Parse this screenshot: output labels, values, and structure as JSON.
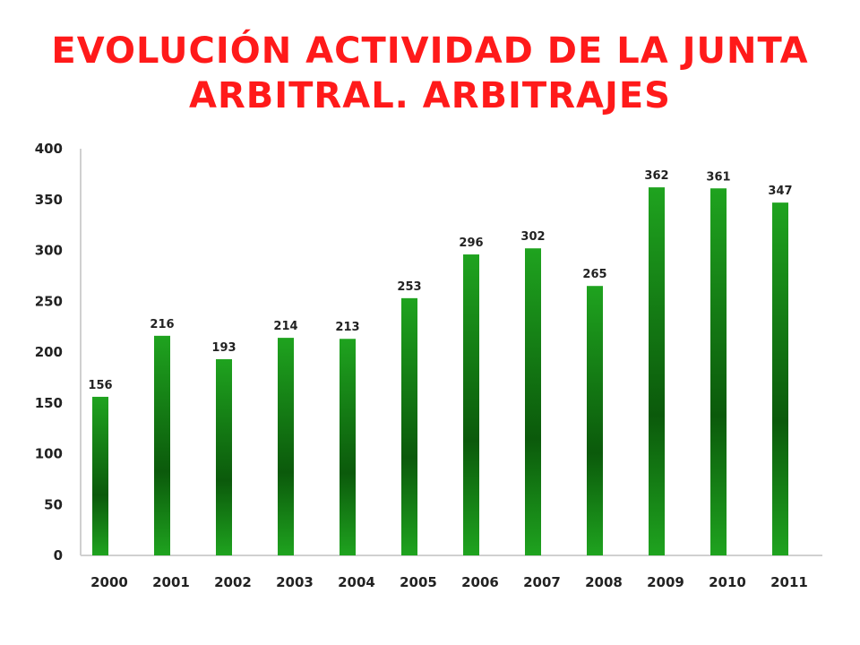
{
  "title": {
    "line1": "EVOLUCIÓN ACTIVIDAD DE LA JUNTA",
    "line2": "ARBITRAL. ARBITRAJES"
  },
  "colors": {
    "title": "#ff1a1a",
    "bar_light": "#1fa31f",
    "bar_dark": "#0b5a0b"
  },
  "chart_data": {
    "type": "bar",
    "title": "EVOLUCIÓN ACTIVIDAD DE LA JUNTA ARBITRAL. ARBITRAJES",
    "categories": [
      "2000",
      "2001",
      "2002",
      "2003",
      "2004",
      "2005",
      "2006",
      "2007",
      "2008",
      "2009",
      "2010",
      "2011"
    ],
    "values": [
      156,
      216,
      193,
      214,
      213,
      253,
      296,
      302,
      265,
      362,
      361,
      347
    ],
    "ylim": [
      0,
      400
    ],
    "yticks": [
      0,
      50,
      100,
      150,
      200,
      250,
      300,
      350,
      400
    ],
    "xlabel": "",
    "ylabel": "",
    "grid": false,
    "legend": "none",
    "data_labels": true
  }
}
